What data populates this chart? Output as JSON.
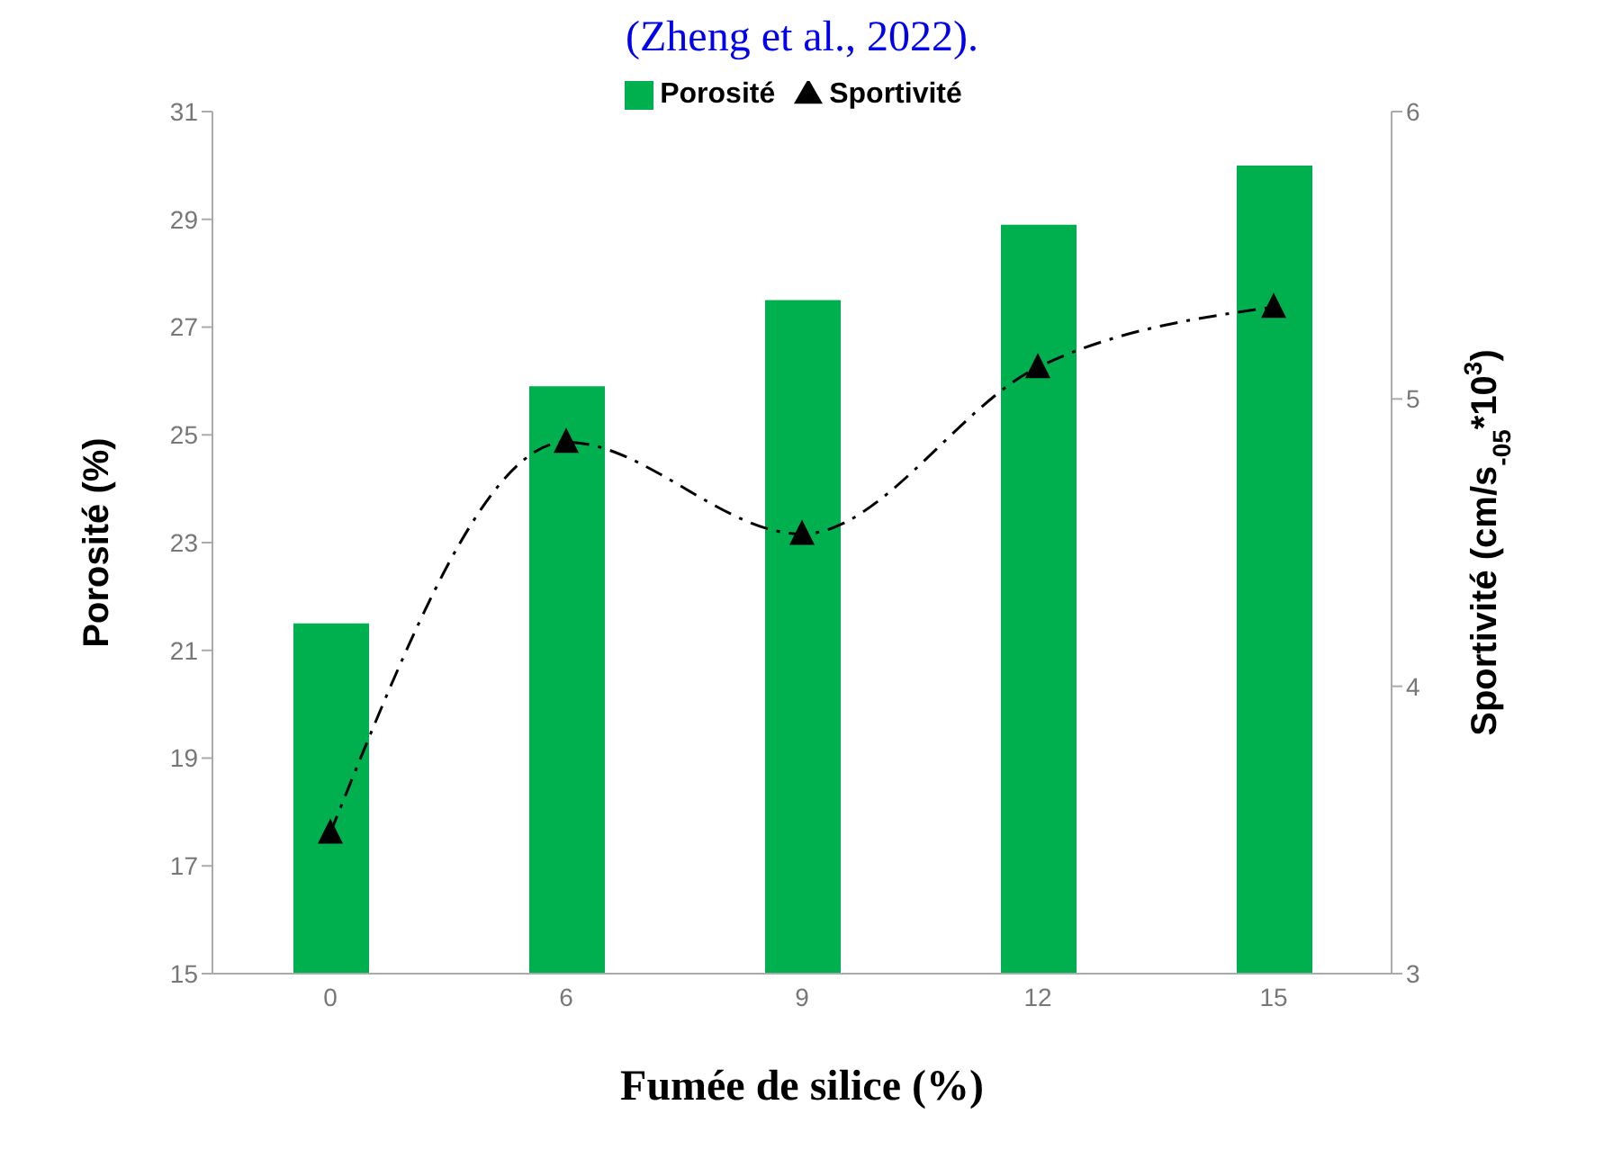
{
  "chart_data": {
    "type": "bar",
    "annotations": [
      "(Zheng et al., 2022)."
    ],
    "categories": [
      "0",
      "6",
      "9",
      "12",
      "15"
    ],
    "xlabel": "Fumée de silice (%)",
    "ylabel": "Porosité   (%)",
    "y2label": "Sportivité  (cm/s$_{-05}$*10$^{3}$)",
    "series": [
      {
        "name": "Porosité",
        "color": "#00b04f",
        "values": [
          21.5,
          25.9,
          27.5,
          28.9,
          30.0
        ]
      },
      {
        "name": "Sportivité",
        "type": "line",
        "axis": "y2",
        "color": "#000000",
        "marker": "triangle",
        "line_style": "dashed",
        "values": [
          3.49,
          4.85,
          4.53,
          5.11,
          5.32
        ]
      }
    ],
    "ylim": [
      15,
      31
    ],
    "yticks": [
      15,
      17,
      19,
      21,
      23,
      25,
      27,
      29,
      31
    ],
    "y2lim": [
      3,
      6
    ],
    "y2ticks": [
      3,
      4,
      5,
      6
    ],
    "legend": "top",
    "grid": false
  }
}
